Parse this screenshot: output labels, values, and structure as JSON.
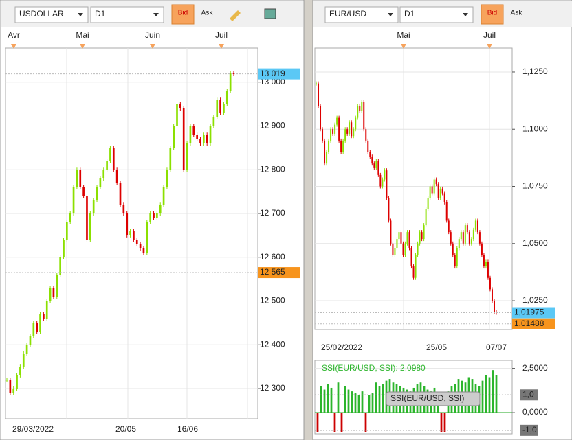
{
  "toolbars": [
    {
      "symbol": "USDOLLAR",
      "timeframe": "D1",
      "bid": "Bid",
      "ask": "Ask"
    },
    {
      "symbol": "EUR/USD",
      "timeframe": "D1",
      "bid": "Bid",
      "ask": "Ask"
    }
  ],
  "chart_data": [
    {
      "type": "candlestick",
      "top_labels": [
        "Avr",
        "Mai",
        "Juin",
        "Juil"
      ],
      "bottom_labels": [
        "29/03/2022",
        "20/05",
        "16/06"
      ],
      "values": [
        12320,
        12290,
        12300,
        12330,
        12350,
        12380,
        12400,
        12420,
        12450,
        12430,
        12470,
        12460,
        12500,
        12530,
        12510,
        12560,
        12600,
        12640,
        12680,
        12700,
        12760,
        12800,
        12760,
        12740,
        12640,
        12700,
        12730,
        12760,
        12780,
        12800,
        12820,
        12850,
        12800,
        12770,
        12720,
        12700,
        12650,
        12660,
        12640,
        12630,
        12620,
        12610,
        12680,
        12700,
        12690,
        12700,
        12720,
        12760,
        12800,
        12850,
        12900,
        12950,
        12940,
        12800,
        12860,
        12900,
        12880,
        12870,
        12860,
        12880,
        12860,
        12900,
        12920,
        12960,
        12930,
        12950,
        12980,
        13020,
        13019
      ],
      "ylim": [
        12231,
        13078
      ],
      "yticks": [
        {
          "value": 12300,
          "label": "12 300"
        },
        {
          "value": 12400,
          "label": "12 400"
        },
        {
          "value": 12500,
          "label": "12 500"
        },
        {
          "value": 12600,
          "label": "12 600"
        },
        {
          "value": 12700,
          "label": "12 700"
        },
        {
          "value": 12800,
          "label": "12 800"
        },
        {
          "value": 12900,
          "label": "12 900"
        },
        {
          "value": 13000,
          "label": "13 000"
        }
      ],
      "markers": [
        {
          "value": 13019,
          "label": "13 019",
          "color": "#5bc8f5"
        },
        {
          "value": 12565,
          "label": "12 565",
          "color": "#f7941d"
        }
      ]
    },
    {
      "type": "candlestick",
      "top_labels": [
        "Mai",
        "Juil"
      ],
      "bottom_labels": [
        "25/02/2022",
        "25/05",
        "07/07"
      ],
      "values": [
        1.12,
        1.11,
        1.1,
        1.095,
        1.085,
        1.09,
        1.095,
        1.1,
        1.098,
        1.102,
        1.105,
        1.095,
        1.09,
        1.095,
        1.1,
        1.098,
        1.103,
        1.097,
        1.1,
        1.105,
        1.11,
        1.108,
        1.112,
        1.1,
        1.095,
        1.09,
        1.088,
        1.085,
        1.083,
        1.086,
        1.08,
        1.075,
        1.078,
        1.082,
        1.07,
        1.06,
        1.05,
        1.045,
        1.048,
        1.052,
        1.055,
        1.05,
        1.045,
        1.05,
        1.055,
        1.048,
        1.04,
        1.035,
        1.045,
        1.05,
        1.055,
        1.052,
        1.058,
        1.065,
        1.07,
        1.075,
        1.072,
        1.078,
        1.076,
        1.07,
        1.074,
        1.072,
        1.068,
        1.06,
        1.055,
        1.05,
        1.045,
        1.04,
        1.048,
        1.052,
        1.055,
        1.05,
        1.058,
        1.055,
        1.05,
        1.052,
        1.056,
        1.06,
        1.055,
        1.05,
        1.045,
        1.04,
        1.042,
        1.035,
        1.03,
        1.025,
        1.02,
        1.01975
      ],
      "ylim": [
        1.0124,
        1.1355
      ],
      "yticks": [
        {
          "value": 1.025,
          "label": "1,0250"
        },
        {
          "value": 1.05,
          "label": "1,0500"
        },
        {
          "value": 1.075,
          "label": "1,0750"
        },
        {
          "value": 1.1,
          "label": "1,1000"
        },
        {
          "value": 1.125,
          "label": "1,1250"
        }
      ],
      "markers": [
        {
          "value": 1.01975,
          "label": "1,01975",
          "color": "#5bc8f5"
        },
        {
          "value": 1.01488,
          "label": "1,01488",
          "color": "#f7941d"
        }
      ]
    },
    {
      "type": "bar",
      "title": "SSI(EUR/USD, SSI): 2,0980",
      "tooltip": "SSI(EUR/USD, SSI)",
      "values": [
        -1.1,
        1.5,
        1.3,
        1.6,
        1.4,
        -1.1,
        1.7,
        -1.1,
        1.5,
        1.3,
        1.2,
        1.1,
        1.0,
        1.2,
        -1.1,
        1.0,
        1.1,
        1.7,
        1.5,
        1.6,
        1.8,
        1.9,
        1.7,
        1.6,
        1.5,
        1.4,
        1.3,
        1.2,
        1.4,
        1.6,
        1.7,
        1.5,
        1.3,
        1.2,
        1.4,
        1.0,
        -1.1,
        -1.1,
        1.2,
        1.5,
        1.6,
        1.9,
        1.8,
        1.7,
        2.0,
        1.9,
        1.6,
        1.5,
        1.8,
        2.1,
        2.0,
        2.4,
        2.1
      ],
      "ylim": [
        -1.2,
        2.95
      ],
      "yticks": [
        {
          "value": 0,
          "label": "0,0000"
        },
        {
          "value": 2.5,
          "label": "2,5000"
        }
      ],
      "levels": [
        {
          "value": 1,
          "label": "1,0"
        },
        {
          "value": -1,
          "label": "-1,0"
        }
      ]
    }
  ]
}
